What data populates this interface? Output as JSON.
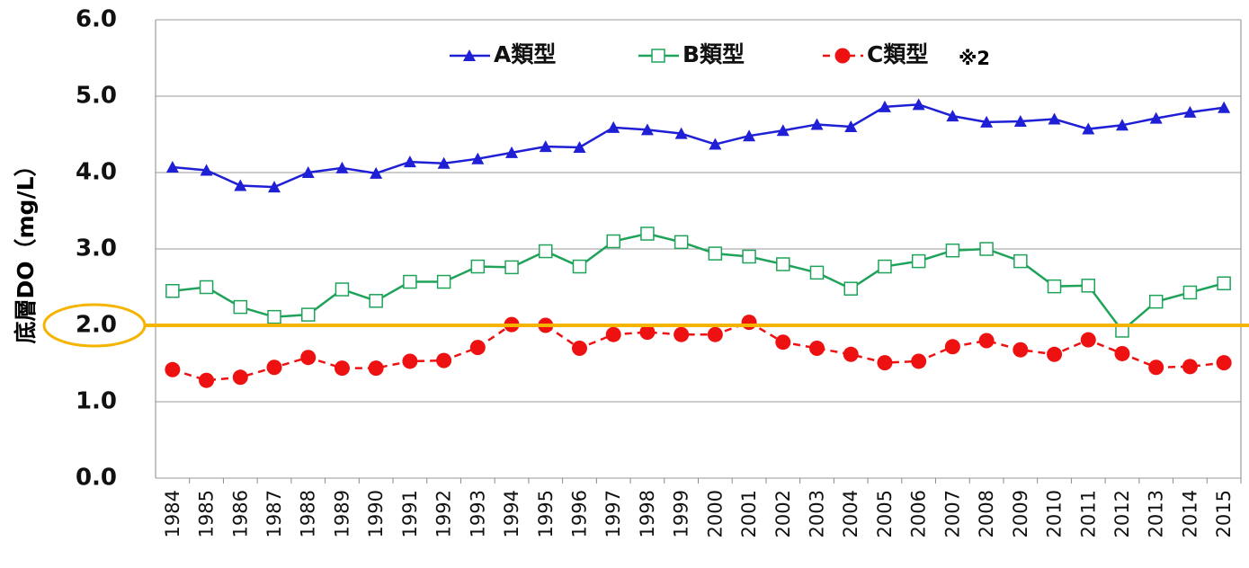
{
  "chart_data": {
    "type": "line",
    "y_label": "底層DO（mg/L）",
    "annotation": "※2",
    "categories": [
      "1984",
      "1985",
      "1986",
      "1987",
      "1988",
      "1989",
      "1990",
      "1991",
      "1992",
      "1993",
      "1994",
      "1995",
      "1996",
      "1997",
      "1998",
      "1999",
      "2000",
      "2001",
      "2002",
      "2003",
      "2004",
      "2005",
      "2006",
      "2007",
      "2008",
      "2009",
      "2010",
      "2011",
      "2012",
      "2013",
      "2014",
      "2015"
    ],
    "series": [
      {
        "name": "A類型",
        "color": "#1f1fd6",
        "marker": "triangle",
        "dash": false,
        "values": [
          4.07,
          4.03,
          3.83,
          3.81,
          4.0,
          4.06,
          3.99,
          4.14,
          4.12,
          4.18,
          4.26,
          4.34,
          4.33,
          4.59,
          4.56,
          4.51,
          4.37,
          4.48,
          4.55,
          4.63,
          4.6,
          4.86,
          4.89,
          4.74,
          4.66,
          4.67,
          4.7,
          4.57,
          4.62,
          4.71,
          4.79,
          4.85
        ]
      },
      {
        "name": "B類型",
        "color": "#1fa35a",
        "marker": "open-square",
        "dash": false,
        "values": [
          2.45,
          2.5,
          2.24,
          2.11,
          2.14,
          2.47,
          2.32,
          2.57,
          2.57,
          2.77,
          2.76,
          2.97,
          2.77,
          3.1,
          3.2,
          3.09,
          2.94,
          2.9,
          2.8,
          2.69,
          2.48,
          2.77,
          2.84,
          2.98,
          3.0,
          2.84,
          2.51,
          2.52,
          1.93,
          2.31,
          2.43,
          2.55
        ]
      },
      {
        "name": "C類型",
        "color": "#ee1111",
        "marker": "circle",
        "dash": true,
        "values": [
          1.42,
          1.28,
          1.32,
          1.45,
          1.58,
          1.44,
          1.44,
          1.53,
          1.54,
          1.71,
          2.01,
          2.0,
          1.7,
          1.88,
          1.91,
          1.88,
          1.88,
          2.04,
          1.78,
          1.7,
          1.62,
          1.51,
          1.53,
          1.72,
          1.8,
          1.68,
          1.62,
          1.81,
          1.63,
          1.45,
          1.46,
          1.51
        ]
      }
    ],
    "ylim": [
      0,
      6
    ],
    "yticks": [
      {
        "value": 0,
        "label": "0.0"
      },
      {
        "value": 1,
        "label": "1.0"
      },
      {
        "value": 2,
        "label": "2.0"
      },
      {
        "value": 3,
        "label": "3.0"
      },
      {
        "value": 4,
        "label": "4.0"
      },
      {
        "value": 5,
        "label": "5.0"
      },
      {
        "value": 6,
        "label": "6.0"
      }
    ],
    "grid": true,
    "reference_line": {
      "value": 2,
      "color": "#f5b400"
    }
  }
}
